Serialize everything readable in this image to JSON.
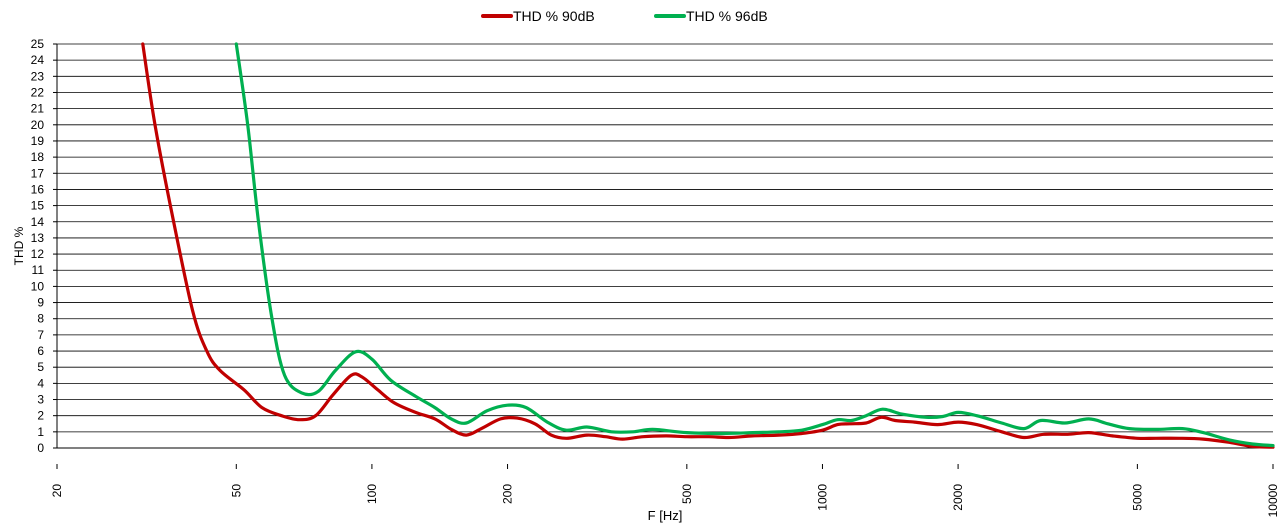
{
  "chart_data": {
    "type": "line",
    "title": "",
    "xlabel": "F [Hz]",
    "ylabel": "THD  %",
    "xscale": "log",
    "xlim": [
      20,
      10000
    ],
    "ylim": [
      0,
      25
    ],
    "xticks": [
      20,
      50,
      100,
      200,
      500,
      1000,
      2000,
      5000,
      10000
    ],
    "xtick_labels": [
      "20",
      "50",
      "100",
      "200",
      "500",
      "1000",
      "2000",
      "5000",
      "10000"
    ],
    "yticks": [
      0,
      1,
      2,
      3,
      4,
      5,
      6,
      7,
      8,
      9,
      10,
      11,
      12,
      13,
      14,
      15,
      16,
      17,
      18,
      19,
      20,
      21,
      22,
      23,
      24,
      25
    ],
    "ytick_labels": [
      "0",
      "1",
      "2",
      "3",
      "4",
      "5",
      "6",
      "7",
      "8",
      "9",
      "10",
      "11",
      "12",
      "13",
      "14",
      "15",
      "16",
      "17",
      "18",
      "19",
      "20",
      "21",
      "22",
      "23",
      "24",
      "25"
    ],
    "grid": "horizontal",
    "legend_position": "top-center",
    "series": [
      {
        "name": "THD % 90dB",
        "color": "#c00000",
        "points": [
          [
            31,
            25
          ],
          [
            33,
            20
          ],
          [
            36,
            14.5
          ],
          [
            40,
            8.5
          ],
          [
            43,
            6
          ],
          [
            46,
            4.8
          ],
          [
            52,
            3.6
          ],
          [
            57,
            2.5
          ],
          [
            63,
            2
          ],
          [
            69,
            1.75
          ],
          [
            75,
            2
          ],
          [
            82,
            3.3
          ],
          [
            90,
            4.5
          ],
          [
            95,
            4.4
          ],
          [
            103,
            3.6
          ],
          [
            112,
            2.8
          ],
          [
            125,
            2.2
          ],
          [
            138,
            1.8
          ],
          [
            150,
            1.15
          ],
          [
            162,
            0.8
          ],
          [
            175,
            1.2
          ],
          [
            193,
            1.8
          ],
          [
            210,
            1.85
          ],
          [
            230,
            1.5
          ],
          [
            250,
            0.8
          ],
          [
            270,
            0.6
          ],
          [
            300,
            0.8
          ],
          [
            330,
            0.7
          ],
          [
            360,
            0.55
          ],
          [
            400,
            0.7
          ],
          [
            450,
            0.75
          ],
          [
            500,
            0.7
          ],
          [
            560,
            0.7
          ],
          [
            620,
            0.65
          ],
          [
            700,
            0.75
          ],
          [
            800,
            0.8
          ],
          [
            900,
            0.9
          ],
          [
            1000,
            1.1
          ],
          [
            1080,
            1.45
          ],
          [
            1150,
            1.5
          ],
          [
            1250,
            1.55
          ],
          [
            1350,
            1.9
          ],
          [
            1450,
            1.7
          ],
          [
            1600,
            1.6
          ],
          [
            1800,
            1.45
          ],
          [
            2000,
            1.6
          ],
          [
            2200,
            1.45
          ],
          [
            2500,
            1.0
          ],
          [
            2800,
            0.65
          ],
          [
            3100,
            0.85
          ],
          [
            3500,
            0.85
          ],
          [
            3900,
            0.95
          ],
          [
            4400,
            0.75
          ],
          [
            5000,
            0.6
          ],
          [
            5500,
            0.6
          ],
          [
            6200,
            0.6
          ],
          [
            7000,
            0.55
          ],
          [
            8000,
            0.35
          ],
          [
            9000,
            0.1
          ],
          [
            10000,
            0.05
          ]
        ]
      },
      {
        "name": "THD % 96dB",
        "color": "#00b050",
        "points": [
          [
            50,
            25
          ],
          [
            53,
            20
          ],
          [
            56,
            14
          ],
          [
            60,
            8
          ],
          [
            64,
            4.5
          ],
          [
            70,
            3.4
          ],
          [
            76,
            3.5
          ],
          [
            83,
            4.8
          ],
          [
            92,
            5.95
          ],
          [
            100,
            5.5
          ],
          [
            110,
            4.2
          ],
          [
            125,
            3.2
          ],
          [
            138,
            2.5
          ],
          [
            150,
            1.8
          ],
          [
            162,
            1.55
          ],
          [
            180,
            2.3
          ],
          [
            200,
            2.65
          ],
          [
            220,
            2.5
          ],
          [
            245,
            1.6
          ],
          [
            270,
            1.1
          ],
          [
            300,
            1.3
          ],
          [
            340,
            1.0
          ],
          [
            380,
            1.0
          ],
          [
            420,
            1.15
          ],
          [
            500,
            0.95
          ],
          [
            600,
            0.9
          ],
          [
            700,
            0.95
          ],
          [
            800,
            1.0
          ],
          [
            900,
            1.1
          ],
          [
            1000,
            1.45
          ],
          [
            1080,
            1.75
          ],
          [
            1160,
            1.7
          ],
          [
            1250,
            2.0
          ],
          [
            1360,
            2.4
          ],
          [
            1500,
            2.1
          ],
          [
            1700,
            1.9
          ],
          [
            1850,
            1.95
          ],
          [
            2000,
            2.2
          ],
          [
            2200,
            2.0
          ],
          [
            2500,
            1.55
          ],
          [
            2800,
            1.2
          ],
          [
            3050,
            1.7
          ],
          [
            3450,
            1.55
          ],
          [
            3900,
            1.8
          ],
          [
            4300,
            1.5
          ],
          [
            4800,
            1.2
          ],
          [
            5500,
            1.15
          ],
          [
            6300,
            1.2
          ],
          [
            7000,
            0.95
          ],
          [
            8000,
            0.5
          ],
          [
            9000,
            0.25
          ],
          [
            10000,
            0.15
          ]
        ]
      }
    ]
  }
}
